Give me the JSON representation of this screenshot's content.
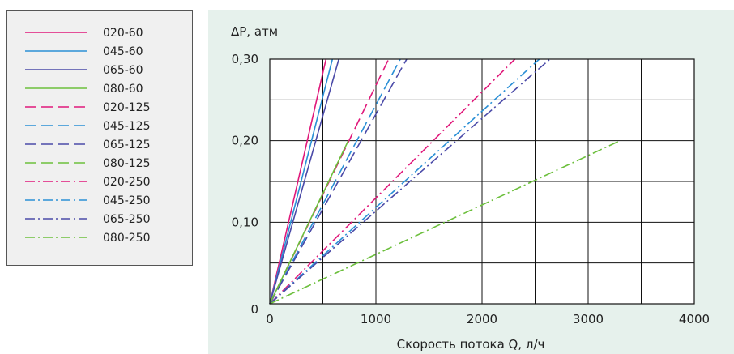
{
  "chart_data": {
    "type": "line",
    "title": "",
    "ylabel": "ΔP, атм",
    "xlabel": "Скорость потока Q, л/ч",
    "xlim": [
      0,
      4000
    ],
    "ylim": [
      0,
      0.3
    ],
    "xticks": [
      "0",
      "1000",
      "2000",
      "3000",
      "4000"
    ],
    "yticks": [
      "0",
      "0,10",
      "0,20",
      "0,30"
    ],
    "grid": true,
    "legend_placement": "left-outside",
    "series": [
      {
        "name": "020-60",
        "style": "solid",
        "color": "#e0187a",
        "x": [
          0,
          530
        ],
        "y": [
          0,
          0.3
        ]
      },
      {
        "name": "045-60",
        "style": "solid",
        "color": "#2a8fd6",
        "x": [
          0,
          590
        ],
        "y": [
          0,
          0.3
        ]
      },
      {
        "name": "065-60",
        "style": "solid",
        "color": "#4a4aa8",
        "x": [
          0,
          650
        ],
        "y": [
          0,
          0.3
        ]
      },
      {
        "name": "080-60",
        "style": "solid",
        "color": "#6cbf3c",
        "x": [
          0,
          740
        ],
        "y": [
          0,
          0.2
        ]
      },
      {
        "name": "020-125",
        "style": "dashed",
        "color": "#e0187a",
        "x": [
          0,
          1120
        ],
        "y": [
          0,
          0.3
        ]
      },
      {
        "name": "045-125",
        "style": "dashed",
        "color": "#2a8fd6",
        "x": [
          0,
          1230
        ],
        "y": [
          0,
          0.3
        ]
      },
      {
        "name": "065-125",
        "style": "dashed",
        "color": "#4a4aa8",
        "x": [
          0,
          1290
        ],
        "y": [
          0,
          0.3
        ]
      },
      {
        "name": "080-125",
        "style": "dashed",
        "color": "#6cbf3c",
        "x": [
          0,
          740
        ],
        "y": [
          0,
          0.2
        ]
      },
      {
        "name": "020-250",
        "style": "dashdot",
        "color": "#e0187a",
        "x": [
          0,
          2310
        ],
        "y": [
          0,
          0.3
        ]
      },
      {
        "name": "045-250",
        "style": "dashdot",
        "color": "#2a8fd6",
        "x": [
          0,
          2540
        ],
        "y": [
          0,
          0.3
        ]
      },
      {
        "name": "065-250",
        "style": "dashdot",
        "color": "#4a4aa8",
        "x": [
          0,
          2640
        ],
        "y": [
          0,
          0.3
        ]
      },
      {
        "name": "080-250",
        "style": "dashdot",
        "color": "#6cbf3c",
        "x": [
          0,
          3300
        ],
        "y": [
          0,
          0.2
        ]
      }
    ]
  }
}
